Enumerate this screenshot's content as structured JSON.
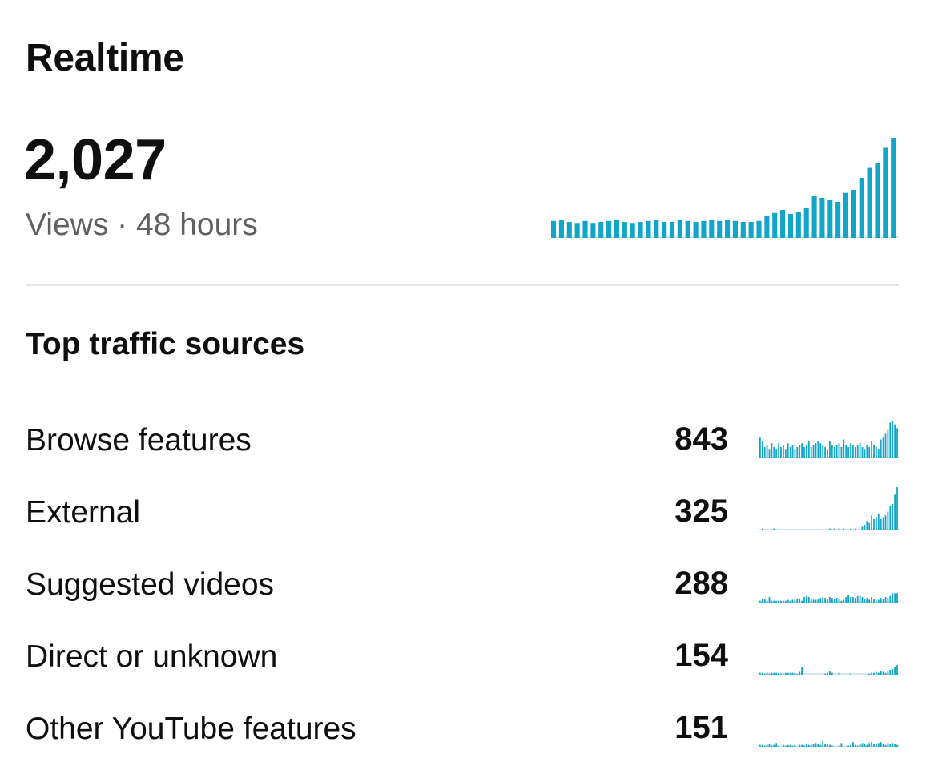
{
  "realtime": {
    "title": "Realtime",
    "views_count": "2,027",
    "views_subtitle": "Views · 48 hours",
    "bar_color": "#12a5c8",
    "baseline_color": "#d3e6ee",
    "sparkline": [
      17,
      18,
      16,
      15,
      17,
      15,
      16,
      17,
      18,
      16,
      15,
      16,
      17,
      18,
      16,
      16,
      18,
      17,
      16,
      17,
      18,
      17,
      18,
      17,
      16,
      16,
      17,
      22,
      25,
      28,
      24,
      26,
      30,
      42,
      40,
      38,
      36,
      45,
      48,
      60,
      70,
      75,
      90,
      100
    ]
  },
  "traffic": {
    "section_title": "Top traffic sources",
    "sources": [
      {
        "label": "Browse features",
        "value": "843",
        "sparkline": [
          22,
          18,
          12,
          14,
          10,
          16,
          12,
          10,
          16,
          12,
          14,
          10,
          16,
          12,
          14,
          10,
          12,
          14,
          16,
          12,
          14,
          18,
          12,
          14,
          16,
          18,
          16,
          14,
          12,
          10,
          18,
          14,
          12,
          14,
          16,
          12,
          20,
          14,
          12,
          16,
          14,
          12,
          14,
          16,
          12,
          10,
          14,
          12,
          18,
          14,
          12,
          10,
          20,
          22,
          26,
          30,
          38,
          40,
          36,
          32
        ]
      },
      {
        "label": "External",
        "value": "325",
        "sparkline": [
          0,
          2,
          0,
          0,
          0,
          0,
          2,
          0,
          0,
          0,
          0,
          0,
          0,
          0,
          0,
          0,
          0,
          0,
          0,
          0,
          0,
          0,
          0,
          0,
          0,
          0,
          0,
          0,
          0,
          0,
          2,
          0,
          2,
          0,
          2,
          0,
          2,
          0,
          0,
          2,
          0,
          2,
          0,
          0,
          4,
          6,
          10,
          8,
          16,
          12,
          14,
          18,
          12,
          14,
          16,
          20,
          26,
          28,
          38,
          46
        ]
      },
      {
        "label": "Suggested videos",
        "value": "288",
        "sparkline": [
          2,
          4,
          4,
          2,
          6,
          2,
          2,
          2,
          2,
          2,
          2,
          2,
          3,
          2,
          3,
          3,
          4,
          4,
          2,
          6,
          7,
          6,
          4,
          3,
          3,
          4,
          5,
          6,
          5,
          4,
          6,
          5,
          4,
          5,
          4,
          2,
          3,
          6,
          8,
          6,
          6,
          5,
          7,
          7,
          6,
          4,
          5,
          3,
          6,
          4,
          2,
          3,
          5,
          4,
          6,
          5,
          7,
          10,
          10,
          10
        ]
      },
      {
        "label": "Direct or unknown",
        "value": "154",
        "sparkline": [
          2,
          2,
          1,
          2,
          1,
          2,
          2,
          2,
          2,
          1,
          1,
          2,
          2,
          2,
          2,
          2,
          1,
          3,
          8,
          0,
          0,
          0,
          0,
          0,
          0,
          0,
          0,
          0,
          1,
          2,
          4,
          2,
          0,
          0,
          2,
          0,
          0,
          0,
          0,
          1,
          0,
          0,
          0,
          0,
          0,
          0,
          0,
          1,
          2,
          2,
          3,
          2,
          4,
          3,
          2,
          4,
          5,
          6,
          8,
          10
        ]
      },
      {
        "label": "Other YouTube features",
        "value": "151",
        "sparkline": [
          2,
          2,
          1,
          2,
          3,
          1,
          2,
          4,
          1,
          0,
          2,
          1,
          2,
          2,
          1,
          2,
          0,
          2,
          2,
          1,
          3,
          2,
          2,
          3,
          4,
          3,
          2,
          6,
          3,
          3,
          2,
          1,
          0,
          0,
          1,
          4,
          0,
          0,
          1,
          2,
          5,
          2,
          1,
          3,
          4,
          3,
          2,
          4,
          5,
          3,
          3,
          4,
          5,
          3,
          2,
          4,
          3,
          4,
          3,
          2
        ]
      }
    ]
  }
}
